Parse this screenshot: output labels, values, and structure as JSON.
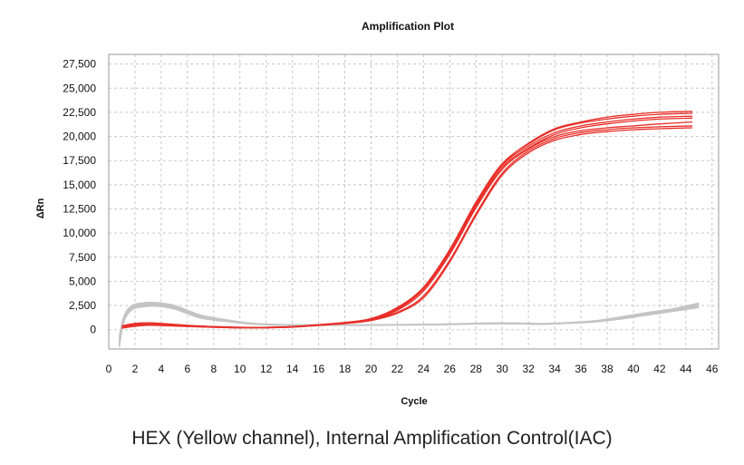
{
  "caption": "HEX (Yellow channel), Internal Amplification Control(IAC)",
  "chart_data": {
    "type": "line",
    "title": "Amplification Plot",
    "xlabel": "Cycle",
    "ylabel": "ΔRn",
    "xlim": [
      0,
      46.5
    ],
    "ylim": [
      -2000,
      28500
    ],
    "xticks": [
      0,
      2,
      4,
      6,
      8,
      10,
      12,
      14,
      16,
      18,
      20,
      22,
      24,
      26,
      28,
      30,
      32,
      34,
      36,
      38,
      40,
      42,
      44,
      46
    ],
    "yticks": [
      0,
      2500,
      5000,
      7500,
      10000,
      12500,
      15000,
      17500,
      20000,
      22500,
      25000,
      27500
    ],
    "ytick_labels": [
      "0",
      "2,500",
      "5,000",
      "7,500",
      "10,000",
      "12,500",
      "15,000",
      "17,500",
      "20,000",
      "22,500",
      "25,000",
      "27,500"
    ],
    "grid": true,
    "colors": {
      "positive": "#e8302a",
      "background": "#c4c4c4"
    },
    "series": [
      {
        "group": "positive",
        "x": [
          1,
          2,
          3,
          4,
          6,
          8,
          10,
          12,
          14,
          16,
          18,
          20,
          22,
          24,
          26,
          28,
          30,
          32,
          34,
          36,
          38,
          40,
          42,
          44.5
        ],
        "values": [
          300,
          550,
          650,
          600,
          420,
          300,
          230,
          230,
          300,
          500,
          700,
          1050,
          2100,
          4200,
          8000,
          12800,
          16800,
          18800,
          20200,
          20900,
          21300,
          21600,
          21800,
          21900
        ]
      },
      {
        "group": "positive",
        "x": [
          1,
          2,
          3,
          4,
          6,
          8,
          10,
          12,
          14,
          16,
          18,
          20,
          22,
          24,
          26,
          28,
          30,
          32,
          34,
          36,
          38,
          40,
          42,
          44.5
        ],
        "values": [
          200,
          400,
          500,
          450,
          350,
          250,
          200,
          200,
          270,
          450,
          650,
          1000,
          1800,
          3500,
          7200,
          12000,
          16200,
          18500,
          19800,
          20400,
          20700,
          20900,
          21000,
          21100
        ]
      },
      {
        "group": "positive",
        "x": [
          1,
          2,
          3,
          4,
          6,
          8,
          10,
          12,
          14,
          16,
          18,
          20,
          22,
          24,
          26,
          28,
          30,
          32,
          34,
          36,
          38,
          40,
          42,
          44.5
        ],
        "values": [
          400,
          650,
          700,
          650,
          450,
          320,
          250,
          240,
          320,
          520,
          750,
          1150,
          2300,
          4400,
          8300,
          13200,
          17200,
          19200,
          20700,
          21400,
          21800,
          22100,
          22300,
          22400
        ]
      },
      {
        "group": "positive",
        "x": [
          1,
          2,
          3,
          4,
          6,
          8,
          10,
          12,
          14,
          16,
          18,
          20,
          22,
          24,
          26,
          28,
          30,
          32,
          34,
          36,
          38,
          40,
          42,
          44.5
        ],
        "values": [
          250,
          500,
          600,
          550,
          400,
          280,
          220,
          220,
          290,
          480,
          680,
          1000,
          2000,
          4000,
          7800,
          12600,
          16600,
          18700,
          20000,
          20600,
          20900,
          21100,
          21300,
          21500
        ]
      },
      {
        "group": "positive",
        "x": [
          1,
          2,
          3,
          4,
          6,
          8,
          10,
          12,
          14,
          16,
          18,
          20,
          22,
          24,
          26,
          28,
          30,
          32,
          34,
          36,
          38,
          40,
          42,
          44.5
        ],
        "values": [
          350,
          600,
          680,
          620,
          430,
          310,
          240,
          235,
          310,
          510,
          720,
          1100,
          2200,
          4300,
          8100,
          13000,
          17000,
          19000,
          20400,
          21100,
          21500,
          21800,
          22000,
          22100
        ]
      },
      {
        "group": "positive",
        "x": [
          1,
          2,
          3,
          4,
          6,
          8,
          10,
          12,
          14,
          16,
          18,
          20,
          22,
          24,
          26,
          28,
          30,
          32,
          34,
          36,
          38,
          40,
          42,
          44.5
        ],
        "values": [
          150,
          350,
          450,
          420,
          330,
          240,
          190,
          190,
          260,
          430,
          630,
          950,
          1700,
          3300,
          7000,
          11800,
          16000,
          18300,
          19600,
          20200,
          20500,
          20700,
          20800,
          20900
        ]
      },
      {
        "group": "positive",
        "x": [
          1,
          2,
          3,
          4,
          6,
          8,
          10,
          12,
          14,
          16,
          18,
          20,
          22,
          24,
          26,
          28,
          30,
          32,
          34,
          36,
          38,
          40,
          42,
          44.5
        ],
        "values": [
          300,
          580,
          660,
          610,
          440,
          305,
          235,
          230,
          305,
          505,
          710,
          1080,
          2150,
          4250,
          8200,
          13100,
          17100,
          19300,
          20800,
          21500,
          22000,
          22300,
          22500,
          22600
        ]
      },
      {
        "group": "background",
        "x": [
          0.8,
          1,
          1.3,
          1.8,
          2.5,
          3.5,
          5,
          7,
          9,
          11,
          13,
          15,
          17,
          19,
          21,
          23,
          25,
          27,
          29,
          31,
          33,
          35,
          37,
          39,
          41,
          43,
          45
        ],
        "values": [
          -1500,
          200,
          1500,
          2300,
          2550,
          2600,
          2300,
          1300,
          900,
          600,
          500,
          480,
          480,
          470,
          500,
          520,
          540,
          600,
          650,
          650,
          600,
          700,
          850,
          1200,
          1600,
          2000,
          2500
        ]
      },
      {
        "group": "background",
        "x": [
          0.8,
          1,
          1.3,
          1.8,
          2.5,
          3.5,
          5,
          7,
          9,
          11,
          13,
          15,
          17,
          19,
          21,
          23,
          25,
          27,
          29,
          31,
          33,
          35,
          37,
          39,
          41,
          43,
          45
        ],
        "values": [
          -800,
          600,
          1800,
          2500,
          2750,
          2800,
          2500,
          1500,
          1000,
          650,
          520,
          490,
          490,
          480,
          510,
          530,
          560,
          620,
          680,
          680,
          630,
          720,
          900,
          1300,
          1750,
          2150,
          2750
        ]
      },
      {
        "group": "background",
        "x": [
          0.8,
          1,
          1.3,
          1.8,
          2.5,
          3.5,
          5,
          7,
          9,
          11,
          13,
          15,
          17,
          19,
          21,
          23,
          25,
          27,
          29,
          31,
          33,
          35,
          37,
          39,
          41,
          43,
          45
        ],
        "values": [
          -1800,
          0,
          1300,
          2100,
          2350,
          2450,
          2150,
          1200,
          850,
          580,
          470,
          450,
          460,
          450,
          480,
          500,
          510,
          570,
          620,
          620,
          570,
          660,
          800,
          1100,
          1500,
          1900,
          2300
        ]
      },
      {
        "group": "background",
        "x": [
          0.8,
          1,
          1.3,
          1.8,
          2.5,
          3.5,
          5,
          7,
          9,
          11,
          13,
          15,
          17,
          19,
          21,
          23,
          25,
          27,
          29,
          31,
          33,
          35,
          37,
          39,
          41,
          43,
          45
        ],
        "values": [
          -1200,
          400,
          1650,
          2400,
          2650,
          2700,
          2400,
          1400,
          950,
          620,
          500,
          470,
          470,
          460,
          490,
          510,
          530,
          590,
          640,
          640,
          590,
          690,
          870,
          1250,
          1650,
          2050,
          2600
        ]
      },
      {
        "group": "background",
        "x": [
          0.8,
          1,
          1.3,
          1.8,
          2.5,
          3.5,
          5,
          7,
          9,
          11,
          13,
          15,
          17,
          19,
          21,
          23,
          25,
          27,
          29,
          31,
          33,
          35,
          37,
          39,
          41,
          43,
          45
        ],
        "values": [
          -1600,
          100,
          1400,
          2200,
          2450,
          2500,
          2200,
          1250,
          880,
          600,
          490,
          460,
          470,
          460,
          490,
          510,
          520,
          580,
          630,
          630,
          580,
          670,
          830,
          1150,
          1550,
          1950,
          2400
        ]
      }
    ]
  }
}
